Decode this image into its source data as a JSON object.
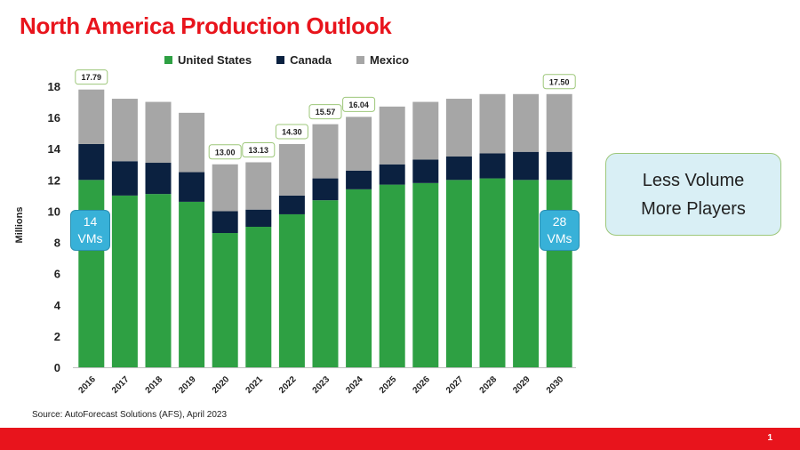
{
  "slide": {
    "title": "North America Production Outlook",
    "source": "Source:  AutoForecast Solutions (AFS), April 2023",
    "page_number": "1"
  },
  "message_box": {
    "line1": "Less Volume",
    "line2": "More Players"
  },
  "callouts": {
    "left": {
      "number": "14",
      "unit": "VMs"
    },
    "right": {
      "number": "28",
      "unit": "VMs"
    }
  },
  "colors": {
    "united_states": "#2ea043",
    "canada": "#0b2140",
    "mexico": "#a6a6a6",
    "title_red": "#e8141c",
    "footer_red": "#e8141c",
    "callout_blue": "#38b1d8"
  },
  "chart_data": {
    "type": "bar",
    "stacked": true,
    "ylabel": "Millions",
    "xlabel": "",
    "ylim": [
      0,
      18
    ],
    "yticks": [
      0,
      2,
      4,
      6,
      8,
      10,
      12,
      14,
      16,
      18
    ],
    "grid": false,
    "legend_position": "top",
    "categories": [
      "2016",
      "2017",
      "2018",
      "2019",
      "2020",
      "2021",
      "2022",
      "2023",
      "2024",
      "2025",
      "2026",
      "2027",
      "2028",
      "2029",
      "2030"
    ],
    "series": [
      {
        "name": "United States",
        "values": [
          12.0,
          11.0,
          11.1,
          10.6,
          8.6,
          9.0,
          9.8,
          10.7,
          11.4,
          11.7,
          11.8,
          12.0,
          12.1,
          12.0,
          12.0
        ]
      },
      {
        "name": "Canada",
        "values": [
          2.3,
          2.2,
          2.0,
          1.9,
          1.4,
          1.1,
          1.2,
          1.4,
          1.2,
          1.3,
          1.5,
          1.5,
          1.6,
          1.8,
          1.8
        ]
      },
      {
        "name": "Mexico",
        "values": [
          3.49,
          4.0,
          3.9,
          3.8,
          3.0,
          3.03,
          3.3,
          3.47,
          3.44,
          3.7,
          3.7,
          3.7,
          3.8,
          3.7,
          3.7
        ]
      }
    ],
    "total_labels": [
      {
        "category": "2016",
        "label": "17.79"
      },
      {
        "category": "2020",
        "label": "13.00"
      },
      {
        "category": "2021",
        "label": "13.13"
      },
      {
        "category": "2022",
        "label": "14.30"
      },
      {
        "category": "2023",
        "label": "15.57"
      },
      {
        "category": "2024",
        "label": "16.04"
      },
      {
        "category": "2030",
        "label": "17.50"
      }
    ]
  }
}
